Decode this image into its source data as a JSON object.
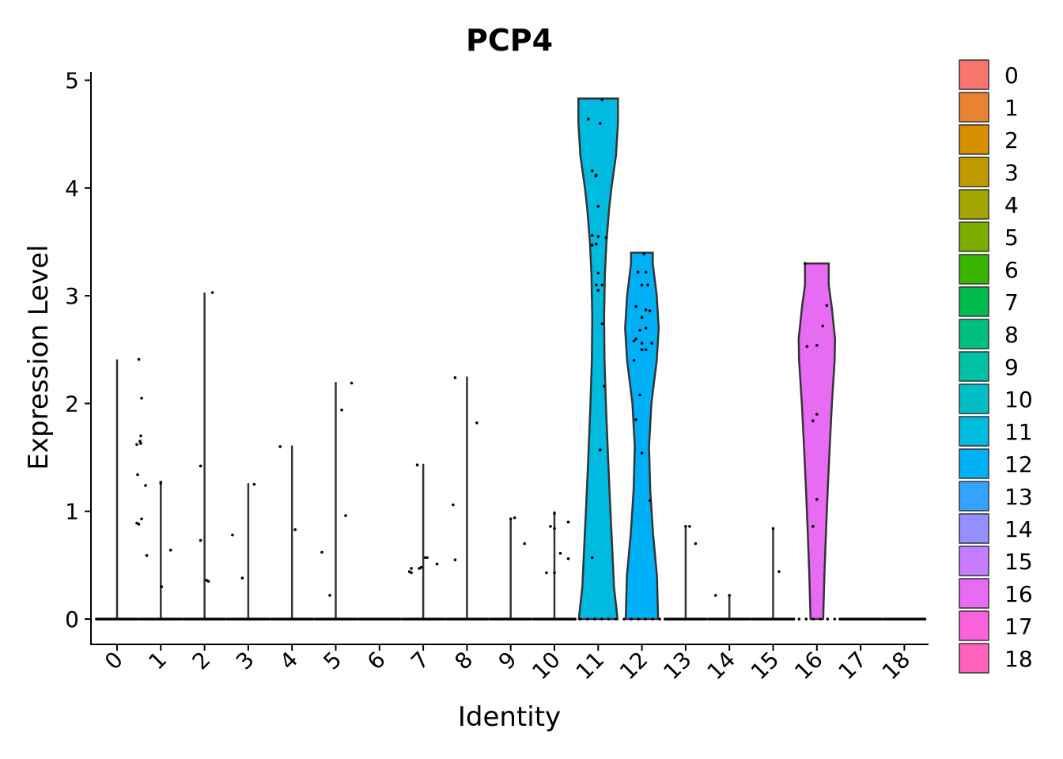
{
  "chart_data": {
    "type": "violin",
    "title": "PCP4",
    "xlabel": "Identity",
    "ylabel": "Expression Level",
    "ylim": [
      -0.23,
      5.07
    ],
    "yticks": [
      "0",
      "1",
      "2",
      "3",
      "4",
      "5"
    ],
    "categories": [
      "0",
      "1",
      "2",
      "3",
      "4",
      "5",
      "6",
      "7",
      "8",
      "9",
      "10",
      "11",
      "12",
      "13",
      "14",
      "15",
      "16",
      "17",
      "18"
    ],
    "legend_position": "right",
    "legend_labels": [
      "0",
      "1",
      "2",
      "3",
      "4",
      "5",
      "6",
      "7",
      "8",
      "9",
      "10",
      "11",
      "12",
      "13",
      "14",
      "15",
      "16",
      "17",
      "18"
    ],
    "colors": [
      "#F8766D",
      "#EA8331",
      "#D89000",
      "#C09B00",
      "#A3A500",
      "#7CAE00",
      "#39B600",
      "#00BB4E",
      "#00BF7D",
      "#00C1A3",
      "#00BFC4",
      "#00BAE0",
      "#00B0F6",
      "#35A2FF",
      "#9590FF",
      "#C77CFF",
      "#E76BF3",
      "#FA62DB",
      "#FF62BC"
    ],
    "series": [
      {
        "name": "0",
        "max": 2.41,
        "points": [
          [
            0.55,
            2.41
          ],
          [
            0.62,
            2.05
          ],
          [
            0.6,
            1.7
          ],
          [
            0.5,
            1.62
          ],
          [
            0.58,
            1.65
          ],
          [
            0.6,
            1.63
          ],
          [
            0.52,
            1.34
          ],
          [
            0.72,
            1.24
          ],
          [
            0.5,
            0.89
          ],
          [
            0.55,
            0.88
          ],
          [
            0.62,
            0.93
          ],
          [
            0.75,
            0.59
          ]
        ]
      },
      {
        "name": "1",
        "max": 1.27,
        "points": [
          [
            0.0,
            1.27
          ],
          [
            0.0,
            1.26
          ],
          [
            0.25,
            0.64
          ],
          [
            0.02,
            0.3
          ]
        ]
      },
      {
        "name": "2",
        "max": 3.03,
        "points": [
          [
            0.2,
            3.03
          ],
          [
            -0.1,
            1.42
          ],
          [
            -0.1,
            0.73
          ],
          [
            0.05,
            0.36
          ],
          [
            0.1,
            0.35
          ]
        ]
      },
      {
        "name": "3",
        "max": 1.26,
        "points": [
          [
            0.15,
            1.25
          ],
          [
            -0.4,
            0.78
          ],
          [
            -0.15,
            0.38
          ]
        ]
      },
      {
        "name": "4",
        "max": 1.61,
        "points": [
          [
            -0.3,
            1.6
          ],
          [
            0.08,
            0.83
          ]
        ]
      },
      {
        "name": "5",
        "max": 2.2,
        "points": [
          [
            0.4,
            2.19
          ],
          [
            0.15,
            1.94
          ],
          [
            0.25,
            0.96
          ],
          [
            -0.35,
            0.62
          ],
          [
            -0.15,
            0.22
          ]
        ]
      },
      {
        "name": "6",
        "max": 0,
        "points": []
      },
      {
        "name": "7",
        "max": 1.44,
        "points": [
          [
            -0.15,
            1.43
          ],
          [
            0.05,
            0.57
          ],
          [
            0.1,
            0.57
          ],
          [
            -0.3,
            0.47
          ],
          [
            -0.1,
            0.47
          ],
          [
            -0.3,
            0.43
          ],
          [
            -0.35,
            0.44
          ],
          [
            0.35,
            0.51
          ],
          [
            -0.05,
            0.48
          ]
        ]
      },
      {
        "name": "8",
        "max": 2.25,
        "points": [
          [
            -0.3,
            2.24
          ],
          [
            0.25,
            1.82
          ],
          [
            -0.35,
            1.06
          ],
          [
            -0.3,
            0.55
          ]
        ]
      },
      {
        "name": "9",
        "max": 0.94,
        "points": [
          [
            0.0,
            0.93
          ],
          [
            0.1,
            0.94
          ],
          [
            0.35,
            0.7
          ]
        ]
      },
      {
        "name": "10",
        "max": 1.0,
        "points": [
          [
            0.0,
            0.98
          ],
          [
            -0.1,
            0.86
          ],
          [
            0.35,
            0.9
          ],
          [
            0.0,
            0.84
          ],
          [
            0.15,
            0.61
          ],
          [
            0.35,
            0.56
          ],
          [
            -0.2,
            0.43
          ],
          [
            0.0,
            0.43
          ]
        ]
      },
      {
        "name": "11",
        "max": 4.83,
        "points": [
          [
            0.1,
            4.82
          ],
          [
            -0.25,
            4.64
          ],
          [
            0.05,
            4.6
          ],
          [
            -0.15,
            4.16
          ],
          [
            -0.05,
            4.12
          ],
          [
            -0.06,
            4.11
          ],
          [
            0.0,
            3.83
          ],
          [
            -0.15,
            3.56
          ],
          [
            0.0,
            3.55
          ],
          [
            0.2,
            3.54
          ],
          [
            -0.15,
            3.47
          ],
          [
            -0.05,
            3.48
          ],
          [
            0.0,
            3.21
          ],
          [
            0.1,
            3.1
          ],
          [
            -0.05,
            3.1
          ],
          [
            0.0,
            3.05
          ],
          [
            0.1,
            2.74
          ],
          [
            0.15,
            2.16
          ],
          [
            0.05,
            1.57
          ],
          [
            -0.15,
            0.57
          ]
        ]
      },
      {
        "name": "12",
        "max": 3.4,
        "points": [
          [
            0.05,
            3.39
          ],
          [
            -0.1,
            3.22
          ],
          [
            0.1,
            3.22
          ],
          [
            0.15,
            3.1
          ],
          [
            0.0,
            3.1
          ],
          [
            -0.15,
            2.9
          ],
          [
            0.1,
            2.87
          ],
          [
            0.2,
            2.86
          ],
          [
            0.0,
            2.8
          ],
          [
            0.1,
            2.7
          ],
          [
            -0.05,
            2.68
          ],
          [
            -0.2,
            2.58
          ],
          [
            -0.15,
            2.6
          ],
          [
            0.0,
            2.56
          ],
          [
            0.25,
            2.56
          ],
          [
            0.0,
            2.5
          ],
          [
            0.1,
            2.5
          ],
          [
            -0.2,
            2.4
          ],
          [
            -0.05,
            2.08
          ],
          [
            -0.15,
            1.85
          ],
          [
            0.0,
            1.54
          ],
          [
            0.2,
            1.1
          ]
        ]
      },
      {
        "name": "13",
        "max": 0.87,
        "points": [
          [
            0.0,
            0.86
          ],
          [
            0.1,
            0.86
          ],
          [
            0.25,
            0.7
          ]
        ]
      },
      {
        "name": "14",
        "max": 0.23,
        "points": [
          [
            -0.35,
            0.22
          ],
          [
            0.0,
            0.22
          ]
        ]
      },
      {
        "name": "15",
        "max": 0.85,
        "points": [
          [
            0.0,
            0.84
          ],
          [
            0.15,
            0.44
          ]
        ]
      },
      {
        "name": "16",
        "max": 3.3,
        "points": [
          [
            -0.3,
            3.3
          ],
          [
            0.25,
            2.91
          ],
          [
            0.15,
            2.72
          ],
          [
            -0.25,
            2.53
          ],
          [
            0.0,
            2.54
          ],
          [
            0.0,
            1.9
          ],
          [
            -0.1,
            1.84
          ],
          [
            0.0,
            1.11
          ],
          [
            -0.1,
            0.86
          ]
        ]
      },
      {
        "name": "17",
        "max": 0,
        "points": []
      },
      {
        "name": "18",
        "max": 0,
        "points": []
      }
    ]
  }
}
